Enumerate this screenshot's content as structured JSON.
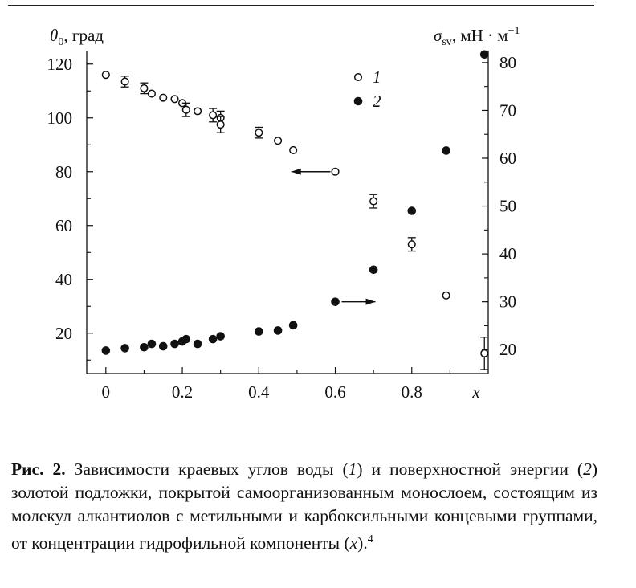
{
  "chart_data": {
    "type": "scatter",
    "x_ticks": [
      "0",
      "0.2",
      "0.4",
      "0.6",
      "0.8"
    ],
    "xlabel": "x",
    "xlim": [
      -0.05,
      1.0
    ],
    "ylabel_left": {
      "symbol": "θ",
      "sub": "0",
      "unit": ", град"
    },
    "ylabel_right": {
      "symbol": "σ",
      "sub": "sv",
      "unit": ", мН · м",
      "sup": "−1"
    },
    "y_left_ticks": [
      "20",
      "40",
      "60",
      "80",
      "100",
      "120"
    ],
    "y_left_lim": [
      5,
      125
    ],
    "y_right_ticks": [
      "20",
      "30",
      "40",
      "50",
      "60",
      "70",
      "80"
    ],
    "y_right_lim": [
      15,
      82.5
    ],
    "legend": [
      {
        "marker": "open",
        "label": "1"
      },
      {
        "marker": "filled",
        "label": "2"
      }
    ],
    "series": [
      {
        "name": "1",
        "axis": "left",
        "marker": "open",
        "points": [
          {
            "x": 0.0,
            "y": 116
          },
          {
            "x": 0.05,
            "y": 113.5,
            "err": 2
          },
          {
            "x": 0.1,
            "y": 111,
            "err": 2
          },
          {
            "x": 0.12,
            "y": 109
          },
          {
            "x": 0.15,
            "y": 107.5
          },
          {
            "x": 0.18,
            "y": 107
          },
          {
            "x": 0.2,
            "y": 105.5
          },
          {
            "x": 0.21,
            "y": 103,
            "err": 2.5
          },
          {
            "x": 0.24,
            "y": 102.5
          },
          {
            "x": 0.28,
            "y": 101,
            "err": 2.5
          },
          {
            "x": 0.3,
            "y": 100,
            "err": 2.5
          },
          {
            "x": 0.3,
            "y": 97.5,
            "err": 3
          },
          {
            "x": 0.4,
            "y": 94.5,
            "err": 2
          },
          {
            "x": 0.45,
            "y": 91.5
          },
          {
            "x": 0.49,
            "y": 88
          },
          {
            "x": 0.6,
            "y": 80
          },
          {
            "x": 0.7,
            "y": 69,
            "err": 2.5
          },
          {
            "x": 0.8,
            "y": 53,
            "err": 2.5
          },
          {
            "x": 0.89,
            "y": 34
          },
          {
            "x": 0.99,
            "y": 12.5,
            "err": 6
          }
        ]
      },
      {
        "name": "2",
        "axis": "right",
        "marker": "filled",
        "points": [
          {
            "x": 0.0,
            "y": 19.8
          },
          {
            "x": 0.05,
            "y": 20.3
          },
          {
            "x": 0.1,
            "y": 20.5
          },
          {
            "x": 0.12,
            "y": 21.2
          },
          {
            "x": 0.15,
            "y": 20.7
          },
          {
            "x": 0.18,
            "y": 21.2
          },
          {
            "x": 0.2,
            "y": 21.7
          },
          {
            "x": 0.21,
            "y": 22.2
          },
          {
            "x": 0.24,
            "y": 21.2
          },
          {
            "x": 0.28,
            "y": 22.2
          },
          {
            "x": 0.3,
            "y": 22.8
          },
          {
            "x": 0.4,
            "y": 23.8
          },
          {
            "x": 0.45,
            "y": 24.0
          },
          {
            "x": 0.49,
            "y": 25.1
          },
          {
            "x": 0.6,
            "y": 30.0
          },
          {
            "x": 0.7,
            "y": 36.7
          },
          {
            "x": 0.8,
            "y": 49.0
          },
          {
            "x": 0.89,
            "y": 61.6
          },
          {
            "x": 0.99,
            "y": 81.7
          }
        ]
      }
    ],
    "annotations": [
      {
        "type": "arrow",
        "points_to": "left",
        "series": "1",
        "from_x": 0.6,
        "to_x": 0.485,
        "y": 80
      },
      {
        "type": "arrow",
        "points_to": "right",
        "series": "2",
        "from_x": 0.6,
        "to_x": 0.705,
        "y": 30
      }
    ]
  },
  "caption": {
    "label": "Рис. 2.",
    "pre1": " Зависимости краевых углов воды (",
    "ref1": "1",
    "mid1": ") и поверхностной энергии (",
    "ref2": "2",
    "mid2": ") золотой подложки, покрытой самоорганизованным монослоем, состоящим из молекул алкантиолов с метильными и карбоксильными концевыми группами, от концентрации гидрофильной компоненты (",
    "var": "x",
    "post": ").",
    "footnote": "4"
  }
}
